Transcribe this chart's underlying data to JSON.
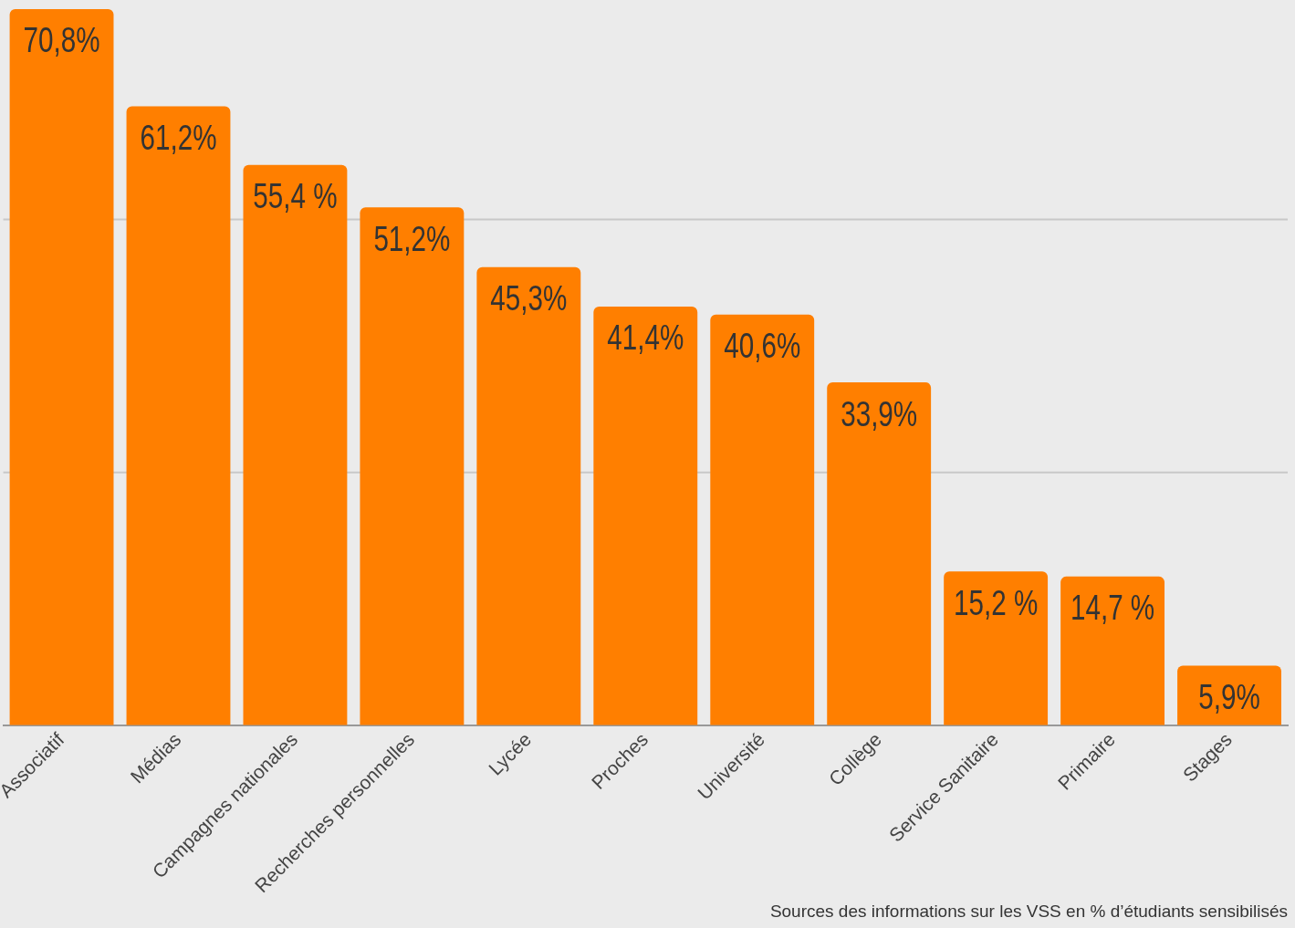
{
  "chart_data": {
    "type": "bar",
    "title": "Sources des informations sur les VSS en % d’étudiants sensibilisés",
    "categories": [
      "Associatif",
      "Médias",
      "Campagnes nationales",
      "Recherches personnelles",
      "Lycée",
      "Proches",
      "Université",
      "Collège",
      "Service Sanitaire",
      "Primaire",
      "Stages"
    ],
    "values": [
      70.8,
      61.2,
      55.4,
      51.2,
      45.3,
      41.4,
      40.6,
      33.9,
      15.2,
      14.7,
      5.9
    ],
    "value_labels": [
      "70,8%",
      "61,2%",
      "55,4 %",
      "51,2%",
      "45,3%",
      "41,4%",
      "40,6%",
      "33,9%",
      "15,2 %",
      "14,7 %",
      "5,9%"
    ],
    "color": "#ff7f00",
    "ref_lines": [
      {
        "axis": "y",
        "value": 25,
        "color": "#c8c8c8"
      },
      {
        "axis": "y",
        "value": 50,
        "color": "#c8c8c8"
      }
    ],
    "tick_labels": "x",
    "legend": false
  }
}
